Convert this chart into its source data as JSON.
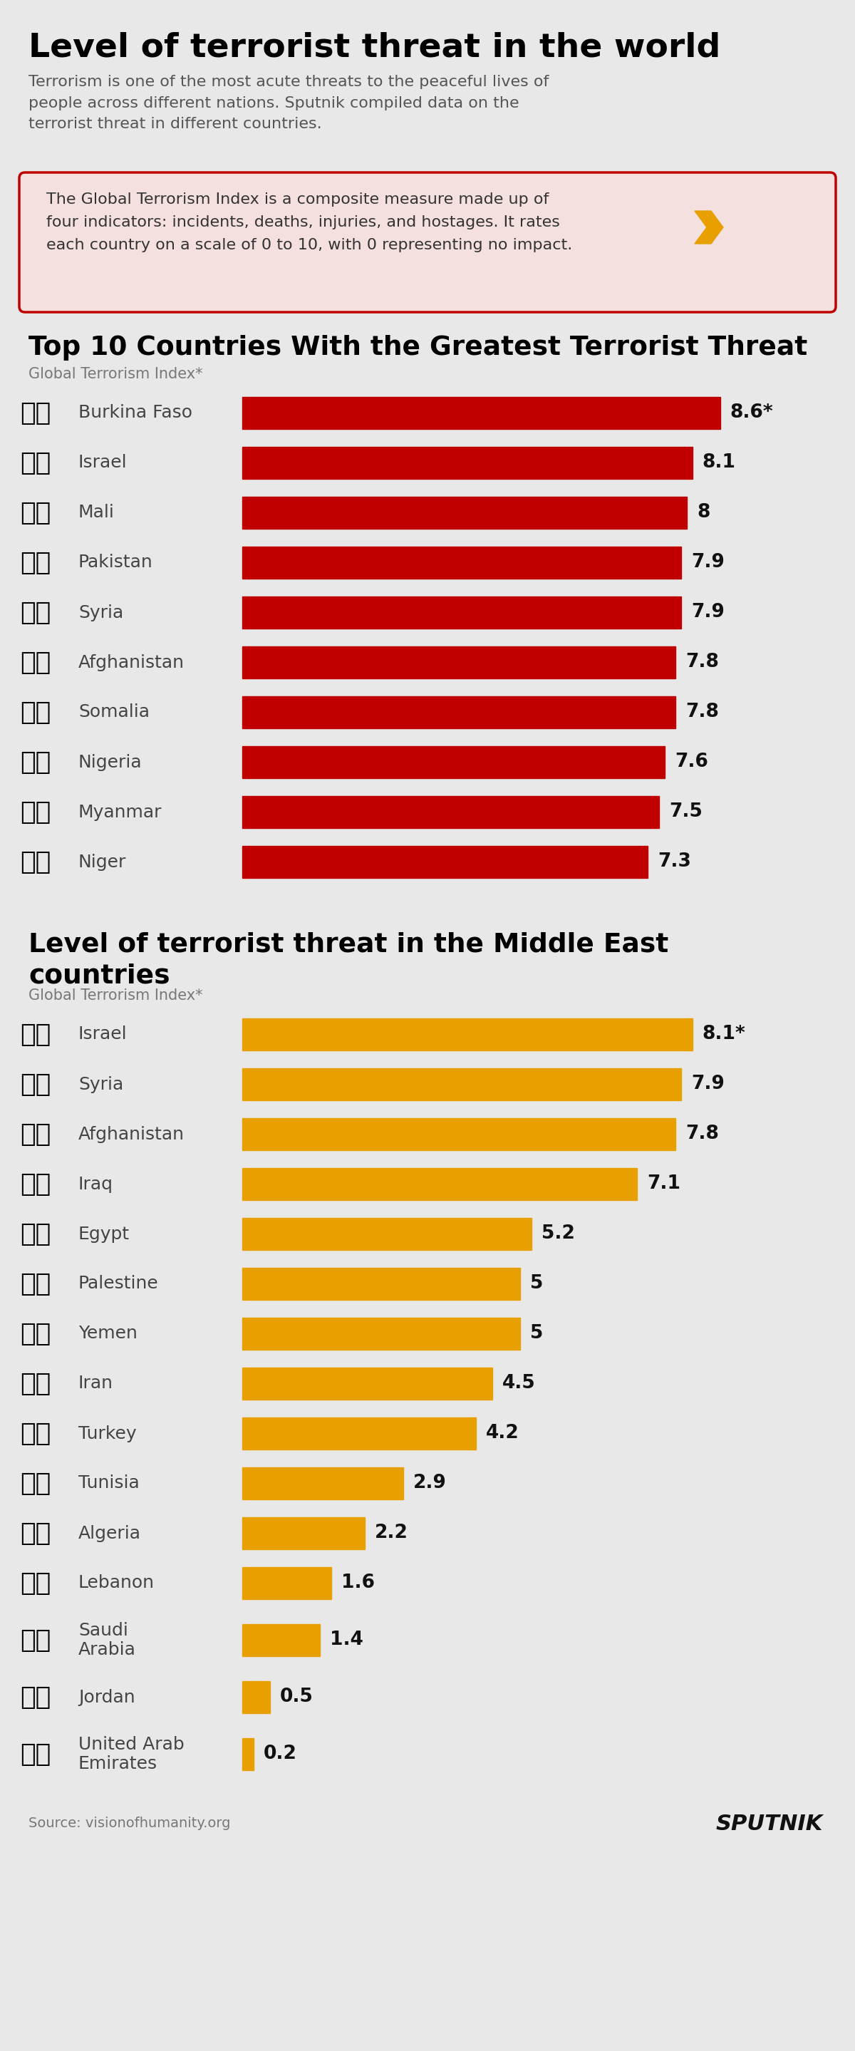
{
  "main_title": "Level of terrorist threat in the world",
  "subtitle": "Terrorism is one of the most acute threats to the peaceful lives of\npeople across different nations. Sputnik compiled data on the\nterrorist threat in different countries.",
  "info_box": "The Global Terrorism Index is a composite measure made up of\nfour indicators: incidents, deaths, injuries, and hostages. It rates\neach country on a scale of 0 to 10, with 0 representing no impact.",
  "section1_title": "Top 10 Countries With the Greatest Terrorist Threat",
  "section1_subtitle": "Global Terrorism Index*",
  "section2_title": "Level of terrorist threat in the Middle East\ncountries",
  "section2_subtitle": "Global Terrorism Index*",
  "source": "Source: visionofhumanity.org",
  "top10_countries": [
    "Burkina Faso",
    "Israel",
    "Mali",
    "Pakistan",
    "Syria",
    "Afghanistan",
    "Somalia",
    "Nigeria",
    "Myanmar",
    "Niger"
  ],
  "top10_values": [
    8.6,
    8.1,
    8.0,
    7.9,
    7.9,
    7.8,
    7.8,
    7.6,
    7.5,
    7.3
  ],
  "top10_labels": [
    "8.6*",
    "8.1",
    "8",
    "7.9",
    "7.9",
    "7.8",
    "7.8",
    "7.6",
    "7.5",
    "7.3"
  ],
  "top10_color": "#c00000",
  "me_countries": [
    "Israel",
    "Syria",
    "Afghanistan",
    "Iraq",
    "Egypt",
    "Palestine",
    "Yemen",
    "Iran",
    "Turkey",
    "Tunisia",
    "Algeria",
    "Lebanon",
    "Saudi\nArabia",
    "Jordan",
    "United Arab\nEmirates"
  ],
  "me_values": [
    8.1,
    7.9,
    7.8,
    7.1,
    5.2,
    5.0,
    5.0,
    4.5,
    4.2,
    2.9,
    2.2,
    1.6,
    1.4,
    0.5,
    0.2
  ],
  "me_labels": [
    "8.1*",
    "7.9",
    "7.8",
    "7.1",
    "5.2",
    "5",
    "5",
    "4.5",
    "4.2",
    "2.9",
    "2.2",
    "1.6",
    "1.4",
    "0.5",
    "0.2"
  ],
  "me_color": "#e8a000",
  "bg_color": "#e8e8e8",
  "title_color": "#000000",
  "bar_label_color": "#000000",
  "country_label_color": "#555555",
  "sputnik_color": "#cc0000",
  "flag_emojis_top10": [
    "🇧🇫",
    "🇮🇱",
    "🇲🇱",
    "🇵🇰",
    "🇸🇾",
    "🇦🇫",
    "🇸🇴",
    "🇳🇬",
    "🇲🇲",
    "🇳🇪"
  ],
  "flag_emojis_me": [
    "🇮🇱",
    "🇸🇾",
    "🇦🇫",
    "🇮🇶",
    "🇪🇬",
    "🇵🇸",
    "🇾🇪",
    "🇮🇷",
    "🇹🇷",
    "🇹🇳",
    "🇩🇿",
    "🇱🇧",
    "🇸🇦",
    "🇯🇴",
    "🇦🇪"
  ]
}
